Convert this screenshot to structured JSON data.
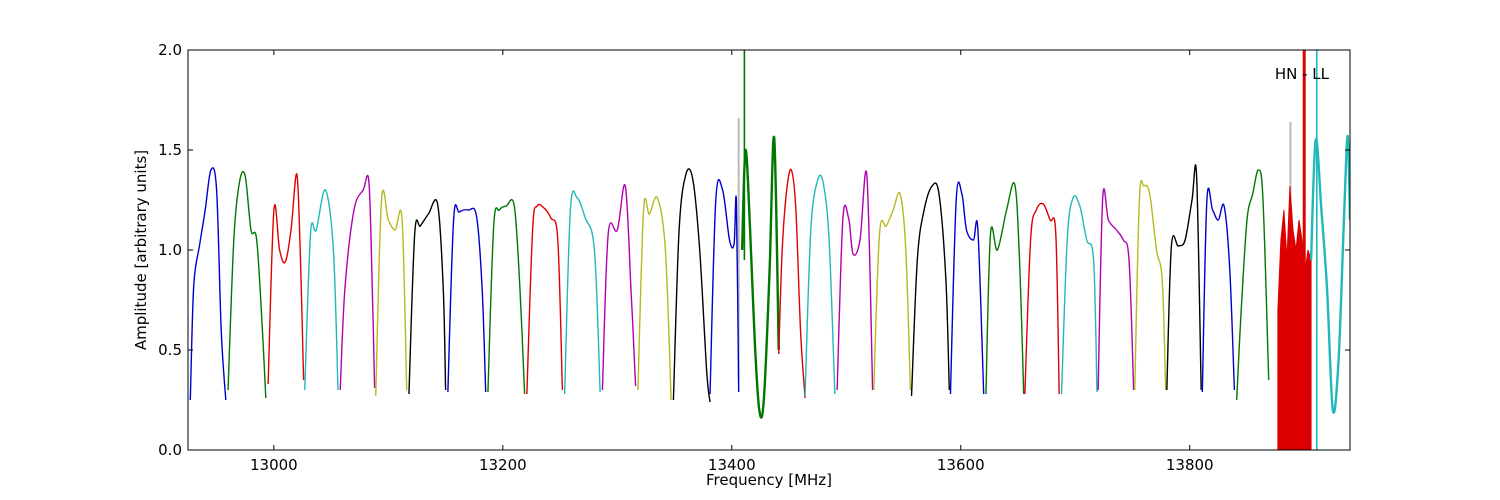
{
  "chart_data": {
    "type": "line",
    "title": "",
    "xlabel": "Frequency [MHz]",
    "ylabel": "Amplitude [arbitrary units]",
    "xlim": [
      12925,
      13940
    ],
    "ylim": [
      0.0,
      2.0
    ],
    "xticks": [
      13000,
      13200,
      13400,
      13600,
      13800
    ],
    "xtick_labels": [
      "13000",
      "13200",
      "13400",
      "13600",
      "13800"
    ],
    "yticks": [
      0.0,
      0.5,
      1.0,
      1.5,
      2.0
    ],
    "ytick_labels": [
      "0.0",
      "0.5",
      "1.0",
      "1.5",
      "2.0"
    ],
    "grid": false,
    "annotations": [
      {
        "text": "HN - LL",
        "x": 13898,
        "y": 1.88
      }
    ],
    "colors": {
      "blue": "#0000cc",
      "green": "#007700",
      "red": "#dd0000",
      "cyan": "#22b8b8",
      "magenta": "#b000b0",
      "olive": "#b8b820",
      "black": "#000000",
      "grey": "#bbbbbb"
    },
    "series": [
      {
        "color": "blue",
        "x": [
          12927,
          12930,
          12935,
          12940,
          12945,
          12950,
          12954,
          12958
        ],
        "y": [
          0.25,
          0.82,
          1.02,
          1.2,
          1.4,
          1.3,
          0.6,
          0.25
        ]
      },
      {
        "color": "green",
        "x": [
          12960,
          12965,
          12970,
          12975,
          12980,
          12985,
          12990,
          12993
        ],
        "y": [
          0.3,
          1.05,
          1.34,
          1.37,
          1.1,
          1.05,
          0.6,
          0.26
        ]
      },
      {
        "color": "red",
        "x": [
          12995,
          13000,
          13005,
          13010,
          13015,
          13020,
          13023,
          13026
        ],
        "y": [
          0.33,
          1.2,
          1.0,
          0.94,
          1.1,
          1.38,
          1.0,
          0.35
        ]
      },
      {
        "color": "cyan",
        "x": [
          13027,
          13032,
          13037,
          13045,
          13052,
          13056
        ],
        "y": [
          0.3,
          1.08,
          1.1,
          1.3,
          1.0,
          0.3
        ]
      },
      {
        "color": "magenta",
        "x": [
          13058,
          13062,
          13070,
          13078,
          13083,
          13086,
          13088
        ],
        "y": [
          0.3,
          0.8,
          1.2,
          1.3,
          1.34,
          0.8,
          0.31
        ]
      },
      {
        "color": "olive",
        "x": [
          13089,
          13094,
          13100,
          13106,
          13112,
          13116
        ],
        "y": [
          0.27,
          1.25,
          1.15,
          1.1,
          1.15,
          0.3
        ]
      },
      {
        "color": "black",
        "x": [
          13118,
          13123,
          13128,
          13135,
          13143,
          13148,
          13150
        ],
        "y": [
          0.28,
          1.08,
          1.12,
          1.18,
          1.23,
          0.8,
          0.3
        ]
      },
      {
        "color": "blue",
        "x": [
          13152,
          13157,
          13162,
          13170,
          13177,
          13182,
          13185
        ],
        "y": [
          0.29,
          1.15,
          1.19,
          1.2,
          1.17,
          0.8,
          0.29
        ]
      },
      {
        "color": "green",
        "x": [
          13187,
          13192,
          13197,
          13203,
          13210,
          13215,
          13219
        ],
        "y": [
          0.29,
          1.12,
          1.2,
          1.22,
          1.22,
          0.8,
          0.28
        ]
      },
      {
        "color": "red",
        "x": [
          13221,
          13226,
          13230,
          13236,
          13242,
          13248,
          13252
        ],
        "y": [
          0.28,
          1.1,
          1.22,
          1.21,
          1.16,
          1.05,
          0.3
        ]
      },
      {
        "color": "cyan",
        "x": [
          13254,
          13259,
          13265,
          13272,
          13280,
          13285
        ],
        "y": [
          0.28,
          1.2,
          1.26,
          1.16,
          1.0,
          0.29
        ]
      },
      {
        "color": "magenta",
        "x": [
          13287,
          13292,
          13300,
          13307,
          13312,
          13316
        ],
        "y": [
          0.3,
          1.08,
          1.1,
          1.32,
          0.8,
          0.32
        ]
      },
      {
        "color": "olive",
        "x": [
          13318,
          13323,
          13328,
          13335,
          13342,
          13347
        ],
        "y": [
          0.3,
          1.2,
          1.18,
          1.26,
          1.0,
          0.25
        ]
      },
      {
        "color": "black",
        "x": [
          13349,
          13354,
          13360,
          13366,
          13372,
          13378,
          13381
        ],
        "y": [
          0.25,
          1.1,
          1.38,
          1.35,
          1.0,
          0.4,
          0.24
        ]
      },
      {
        "color": "blue",
        "x": [
          13381,
          13386,
          13392,
          13398,
          13402,
          13404,
          13406
        ],
        "y": [
          0.28,
          1.25,
          1.3,
          1.05,
          1.03,
          1.24,
          0.29
        ]
      },
      {
        "color": "green",
        "x": [
          13409,
          13412,
          13416,
          13420,
          13424,
          13428,
          13433,
          13437,
          13441
        ],
        "y": [
          1.0,
          1.5,
          1.1,
          0.55,
          0.2,
          0.25,
          0.9,
          1.56,
          0.5
        ]
      },
      {
        "color": "red",
        "x": [
          13441,
          13444,
          13448,
          13452,
          13456,
          13460,
          13464
        ],
        "y": [
          0.48,
          1.0,
          1.3,
          1.4,
          1.2,
          0.6,
          0.26
        ]
      },
      {
        "color": "cyan",
        "x": [
          13464,
          13469,
          13475,
          13480,
          13485,
          13490
        ],
        "y": [
          0.27,
          1.1,
          1.35,
          1.33,
          1.05,
          0.28
        ]
      },
      {
        "color": "magenta",
        "x": [
          13492,
          13497,
          13502,
          13506,
          13512,
          13518,
          13523
        ],
        "y": [
          0.3,
          1.15,
          1.16,
          0.98,
          1.05,
          1.37,
          0.3
        ]
      },
      {
        "color": "olive",
        "x": [
          13524,
          13529,
          13535,
          13541,
          13547,
          13552,
          13556
        ],
        "y": [
          0.3,
          1.08,
          1.12,
          1.2,
          1.28,
          1.0,
          0.3
        ]
      },
      {
        "color": "black",
        "x": [
          13557,
          13562,
          13568,
          13575,
          13581,
          13587,
          13590
        ],
        "y": [
          0.27,
          0.95,
          1.2,
          1.32,
          1.28,
          0.85,
          0.3
        ]
      },
      {
        "color": "blue",
        "x": [
          13591,
          13596,
          13601,
          13605,
          13611,
          13615,
          13620
        ],
        "y": [
          0.28,
          1.25,
          1.28,
          1.1,
          1.05,
          1.1,
          0.28
        ]
      },
      {
        "color": "green",
        "x": [
          13622,
          13626,
          13632,
          13640,
          13647,
          13651,
          13655
        ],
        "y": [
          0.28,
          1.08,
          1.0,
          1.2,
          1.33,
          1.0,
          0.28
        ]
      },
      {
        "color": "red",
        "x": [
          13656,
          13661,
          13666,
          13672,
          13678,
          13683,
          13686
        ],
        "y": [
          0.28,
          1.05,
          1.2,
          1.23,
          1.15,
          1.08,
          0.28
        ]
      },
      {
        "color": "cyan",
        "x": [
          13688,
          13693,
          13698,
          13704,
          13710,
          13716,
          13719
        ],
        "y": [
          0.28,
          1.05,
          1.26,
          1.22,
          1.05,
          0.95,
          0.29
        ]
      },
      {
        "color": "magenta",
        "x": [
          13720,
          13724,
          13729,
          13736,
          13742,
          13747,
          13751
        ],
        "y": [
          0.3,
          1.26,
          1.15,
          1.1,
          1.05,
          0.95,
          0.3
        ]
      },
      {
        "color": "olive",
        "x": [
          13752,
          13756,
          13760,
          13765,
          13771,
          13776,
          13779
        ],
        "y": [
          0.3,
          1.25,
          1.32,
          1.28,
          1.0,
          0.85,
          0.3
        ]
      },
      {
        "color": "black",
        "x": [
          13780,
          13784,
          13790,
          13796,
          13802,
          13806,
          13810
        ],
        "y": [
          0.3,
          1.02,
          1.02,
          1.05,
          1.25,
          1.37,
          0.3
        ]
      },
      {
        "color": "blue",
        "x": [
          13811,
          13815,
          13820,
          13825,
          13830,
          13835,
          13839
        ],
        "y": [
          0.29,
          1.25,
          1.2,
          1.15,
          1.22,
          0.9,
          0.3
        ]
      },
      {
        "color": "green",
        "x": [
          13841,
          13845,
          13850,
          13855,
          13860,
          13864,
          13869
        ],
        "y": [
          0.25,
          0.7,
          1.15,
          1.28,
          1.4,
          1.25,
          0.35
        ]
      },
      {
        "color": "cyan",
        "x": [
          13906,
          13910,
          13915,
          13920,
          13925,
          13930,
          13935,
          13938,
          13940
        ],
        "y": [
          0.95,
          1.55,
          1.2,
          0.8,
          0.2,
          0.45,
          1.2,
          1.57,
          1.15
        ]
      }
    ],
    "grey_spikes": [
      {
        "x": 13406,
        "y": 1.66
      },
      {
        "x": 13888,
        "y": 1.64
      }
    ],
    "green_spike": {
      "x": 13411,
      "y": 2.0
    },
    "red_band": {
      "x0": 13877,
      "x1": 13906,
      "y_top": [
        0.7,
        1.05,
        1.2,
        0.95,
        1.32,
        1.1,
        1.0,
        1.15,
        1.05,
        0.9,
        1.0,
        0.95
      ]
    },
    "red_spike": {
      "x": 13900,
      "y": 2.0
    },
    "cyan_spike": {
      "x": 13911,
      "y": 2.0
    }
  }
}
